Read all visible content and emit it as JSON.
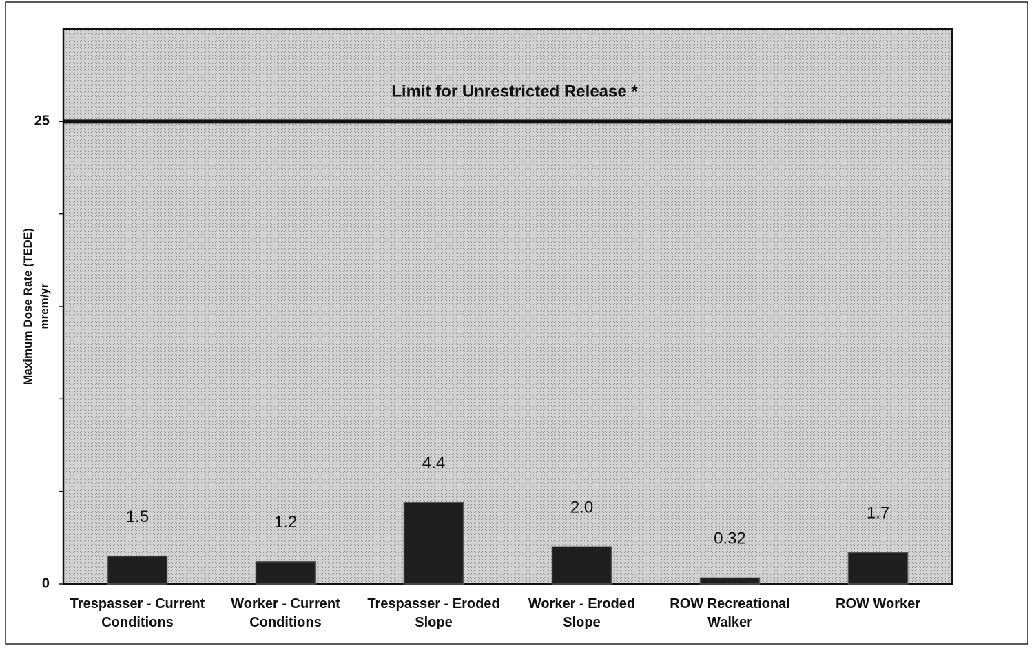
{
  "chart_data": {
    "type": "bar",
    "y_label": [
      "Maximum Dose Rate (TEDE)",
      "mrem/yr"
    ],
    "categories": [
      [
        "Trespasser - Current",
        "Conditions"
      ],
      [
        "Worker - Current",
        "Conditions"
      ],
      [
        "Trespasser - Eroded",
        "Slope"
      ],
      [
        "Worker - Eroded",
        "Slope"
      ],
      [
        "ROW Recreational",
        "Walker"
      ],
      [
        "ROW Worker"
      ]
    ],
    "values": [
      1.5,
      1.2,
      4.4,
      2.0,
      0.32,
      1.7
    ],
    "value_labels": [
      "1.5",
      "1.2",
      "4.4",
      "2.0",
      "0.32",
      "1.7"
    ],
    "color": "#1e1e1e",
    "ylim": [
      0,
      30
    ],
    "yticks": [
      0,
      25
    ],
    "minor_yticks": [
      5,
      10,
      15,
      20
    ],
    "reference_line": {
      "value": 25,
      "label": "Limit for Unrestricted Release *"
    },
    "grid": false
  }
}
